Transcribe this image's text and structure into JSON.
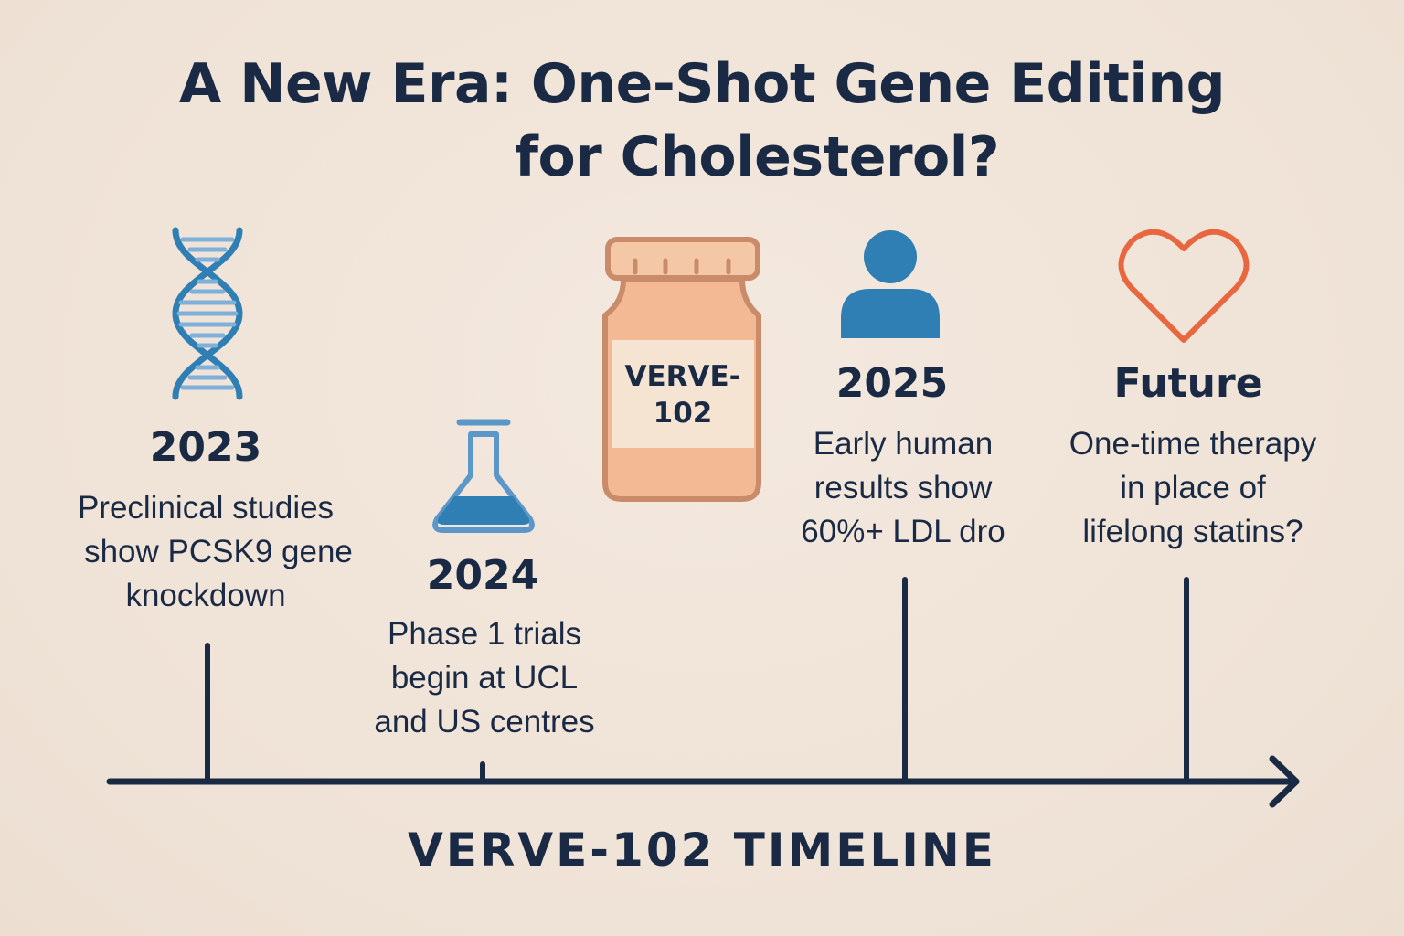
{
  "title": {
    "line1": "A New Era: One-Shot Gene Editing",
    "line2": "for Cholesterol?"
  },
  "events": [
    {
      "year": "2023",
      "icon": "dna-icon",
      "description": [
        "Preclinical studies",
        "show PCSK9 gene",
        "knockdown"
      ]
    },
    {
      "year": "2024",
      "icon": "flask-icon",
      "description": [
        "Phase 1 trials",
        "begin at UCL",
        "and US centres"
      ]
    },
    {
      "year": "2025",
      "icon": "person-icon",
      "description": [
        "Early human",
        "results show",
        "60%+ LDL dro"
      ]
    },
    {
      "year": "Future",
      "icon": "heart-icon",
      "description": [
        "One-time therapy",
        "in place of",
        "lifelong statins?"
      ]
    }
  ],
  "vial": {
    "icon": "medicine-vial-icon",
    "label_line1": "VERVE-",
    "label_line2": "102"
  },
  "timeline_label": "VERVE-102 TIMELINE",
  "colors": {
    "background": "#f1e5da",
    "navy": "#1a2a44",
    "blue": "#2f7fb5",
    "light_blue": "#5b97c9",
    "vial_fill": "#f2b994",
    "vial_outline": "#c98b6a",
    "heart": "#e8673f"
  }
}
